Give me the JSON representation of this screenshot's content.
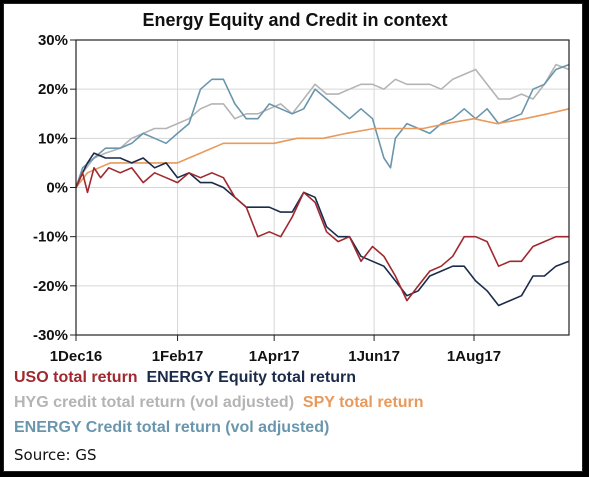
{
  "chart_data": {
    "type": "line",
    "title": "Energy Equity and Credit in context",
    "ylim": [
      -30,
      30
    ],
    "y_ticks": [
      "30%",
      "20%",
      "10%",
      "0%",
      "-10%",
      "-20%",
      "-30%"
    ],
    "x_range": [
      "2016-12-01",
      "2017-09-28"
    ],
    "x_ticks": [
      "1Dec16",
      "1Feb17",
      "1Apr17",
      "1Jun17",
      "1Aug17"
    ],
    "grid": true,
    "legend_position": "bottom",
    "series": [
      {
        "name": "USO total return",
        "color": "#a0282e",
        "points": [
          [
            "2016-12-01",
            0
          ],
          [
            "2016-12-05",
            3
          ],
          [
            "2016-12-08",
            -1
          ],
          [
            "2016-12-12",
            4
          ],
          [
            "2016-12-16",
            2
          ],
          [
            "2016-12-21",
            4
          ],
          [
            "2016-12-28",
            3
          ],
          [
            "2017-01-04",
            4
          ],
          [
            "2017-01-11",
            1
          ],
          [
            "2017-01-18",
            3
          ],
          [
            "2017-01-25",
            2
          ],
          [
            "2017-02-01",
            1
          ],
          [
            "2017-02-08",
            3
          ],
          [
            "2017-02-15",
            2
          ],
          [
            "2017-02-22",
            3
          ],
          [
            "2017-03-01",
            2
          ],
          [
            "2017-03-08",
            -2
          ],
          [
            "2017-03-15",
            -4
          ],
          [
            "2017-03-22",
            -10
          ],
          [
            "2017-03-29",
            -9
          ],
          [
            "2017-04-05",
            -10
          ],
          [
            "2017-04-12",
            -6
          ],
          [
            "2017-04-19",
            -1
          ],
          [
            "2017-04-26",
            -3
          ],
          [
            "2017-05-03",
            -9
          ],
          [
            "2017-05-10",
            -11
          ],
          [
            "2017-05-17",
            -10
          ],
          [
            "2017-05-24",
            -15
          ],
          [
            "2017-05-31",
            -12
          ],
          [
            "2017-06-07",
            -14
          ],
          [
            "2017-06-14",
            -18
          ],
          [
            "2017-06-21",
            -23
          ],
          [
            "2017-06-28",
            -20
          ],
          [
            "2017-07-05",
            -17
          ],
          [
            "2017-07-12",
            -16
          ],
          [
            "2017-07-19",
            -14
          ],
          [
            "2017-07-26",
            -10
          ],
          [
            "2017-08-02",
            -10
          ],
          [
            "2017-08-09",
            -11
          ],
          [
            "2017-08-16",
            -16
          ],
          [
            "2017-08-23",
            -15
          ],
          [
            "2017-08-30",
            -15
          ],
          [
            "2017-09-06",
            -12
          ],
          [
            "2017-09-13",
            -11
          ],
          [
            "2017-09-20",
            -10
          ],
          [
            "2017-09-28",
            -10
          ]
        ]
      },
      {
        "name": "ENERGY Equity total return",
        "color": "#1b2b4a",
        "points": [
          [
            "2016-12-01",
            0
          ],
          [
            "2016-12-05",
            3
          ],
          [
            "2016-12-08",
            5
          ],
          [
            "2016-12-12",
            7
          ],
          [
            "2016-12-19",
            6
          ],
          [
            "2016-12-28",
            6
          ],
          [
            "2017-01-04",
            5
          ],
          [
            "2017-01-11",
            6
          ],
          [
            "2017-01-18",
            4
          ],
          [
            "2017-01-25",
            5
          ],
          [
            "2017-02-01",
            2
          ],
          [
            "2017-02-08",
            3
          ],
          [
            "2017-02-15",
            1
          ],
          [
            "2017-02-22",
            1
          ],
          [
            "2017-03-01",
            0
          ],
          [
            "2017-03-08",
            -2
          ],
          [
            "2017-03-15",
            -4
          ],
          [
            "2017-03-22",
            -4
          ],
          [
            "2017-03-29",
            -4
          ],
          [
            "2017-04-05",
            -5
          ],
          [
            "2017-04-12",
            -5
          ],
          [
            "2017-04-19",
            -1
          ],
          [
            "2017-04-26",
            -2
          ],
          [
            "2017-05-03",
            -8
          ],
          [
            "2017-05-10",
            -10
          ],
          [
            "2017-05-17",
            -10
          ],
          [
            "2017-05-24",
            -14
          ],
          [
            "2017-05-31",
            -15
          ],
          [
            "2017-06-07",
            -16
          ],
          [
            "2017-06-14",
            -19
          ],
          [
            "2017-06-21",
            -22
          ],
          [
            "2017-06-28",
            -21
          ],
          [
            "2017-07-05",
            -18
          ],
          [
            "2017-07-12",
            -17
          ],
          [
            "2017-07-19",
            -16
          ],
          [
            "2017-07-26",
            -16
          ],
          [
            "2017-08-02",
            -19
          ],
          [
            "2017-08-09",
            -21
          ],
          [
            "2017-08-16",
            -24
          ],
          [
            "2017-08-23",
            -23
          ],
          [
            "2017-08-30",
            -22
          ],
          [
            "2017-09-06",
            -18
          ],
          [
            "2017-09-13",
            -18
          ],
          [
            "2017-09-20",
            -16
          ],
          [
            "2017-09-28",
            -15
          ]
        ]
      },
      {
        "name": "HYG credit total return (vol adjusted)",
        "color": "#b4b4b4",
        "points": [
          [
            "2016-12-01",
            0
          ],
          [
            "2016-12-05",
            3
          ],
          [
            "2016-12-12",
            6
          ],
          [
            "2016-12-19",
            7
          ],
          [
            "2016-12-28",
            8
          ],
          [
            "2017-01-04",
            10
          ],
          [
            "2017-01-11",
            11
          ],
          [
            "2017-01-18",
            12
          ],
          [
            "2017-01-25",
            12
          ],
          [
            "2017-02-01",
            13
          ],
          [
            "2017-02-08",
            14
          ],
          [
            "2017-02-15",
            16
          ],
          [
            "2017-02-22",
            17
          ],
          [
            "2017-03-01",
            17
          ],
          [
            "2017-03-08",
            14
          ],
          [
            "2017-03-15",
            15
          ],
          [
            "2017-03-22",
            15
          ],
          [
            "2017-03-29",
            16
          ],
          [
            "2017-04-05",
            17
          ],
          [
            "2017-04-12",
            15
          ],
          [
            "2017-04-19",
            18
          ],
          [
            "2017-04-26",
            21
          ],
          [
            "2017-05-03",
            19
          ],
          [
            "2017-05-10",
            19
          ],
          [
            "2017-05-17",
            20
          ],
          [
            "2017-05-24",
            21
          ],
          [
            "2017-05-31",
            21
          ],
          [
            "2017-06-07",
            20
          ],
          [
            "2017-06-14",
            22
          ],
          [
            "2017-06-21",
            21
          ],
          [
            "2017-06-28",
            21
          ],
          [
            "2017-07-05",
            21
          ],
          [
            "2017-07-12",
            20
          ],
          [
            "2017-07-19",
            22
          ],
          [
            "2017-07-26",
            23
          ],
          [
            "2017-08-02",
            24
          ],
          [
            "2017-08-09",
            21
          ],
          [
            "2017-08-16",
            18
          ],
          [
            "2017-08-23",
            18
          ],
          [
            "2017-08-30",
            19
          ],
          [
            "2017-09-06",
            18
          ],
          [
            "2017-09-13",
            21
          ],
          [
            "2017-09-20",
            25
          ],
          [
            "2017-09-28",
            24
          ]
        ]
      },
      {
        "name": "SPY total return",
        "color": "#e89a5c",
        "points": [
          [
            "2016-12-01",
            0
          ],
          [
            "2016-12-08",
            3
          ],
          [
            "2016-12-15",
            4
          ],
          [
            "2016-12-22",
            5
          ],
          [
            "2017-01-04",
            5
          ],
          [
            "2017-01-18",
            5
          ],
          [
            "2017-02-01",
            5
          ],
          [
            "2017-02-15",
            7
          ],
          [
            "2017-03-01",
            9
          ],
          [
            "2017-03-15",
            9
          ],
          [
            "2017-04-01",
            9
          ],
          [
            "2017-04-15",
            10
          ],
          [
            "2017-05-01",
            10
          ],
          [
            "2017-05-15",
            11
          ],
          [
            "2017-06-01",
            12
          ],
          [
            "2017-06-15",
            12
          ],
          [
            "2017-07-01",
            12
          ],
          [
            "2017-07-15",
            13
          ],
          [
            "2017-08-01",
            14
          ],
          [
            "2017-08-15",
            13
          ],
          [
            "2017-09-01",
            14
          ],
          [
            "2017-09-15",
            15
          ],
          [
            "2017-09-28",
            16
          ]
        ]
      },
      {
        "name": "ENERGY Credit total return (vol adjusted)",
        "color": "#6a96ad",
        "points": [
          [
            "2016-12-01",
            0
          ],
          [
            "2016-12-05",
            4
          ],
          [
            "2016-12-12",
            6
          ],
          [
            "2016-12-19",
            8
          ],
          [
            "2016-12-28",
            8
          ],
          [
            "2017-01-04",
            9
          ],
          [
            "2017-01-11",
            11
          ],
          [
            "2017-01-18",
            10
          ],
          [
            "2017-01-25",
            9
          ],
          [
            "2017-02-01",
            11
          ],
          [
            "2017-02-08",
            13
          ],
          [
            "2017-02-15",
            20
          ],
          [
            "2017-02-22",
            22
          ],
          [
            "2017-03-01",
            22
          ],
          [
            "2017-03-08",
            17
          ],
          [
            "2017-03-15",
            14
          ],
          [
            "2017-03-22",
            14
          ],
          [
            "2017-03-29",
            17
          ],
          [
            "2017-04-05",
            16
          ],
          [
            "2017-04-12",
            15
          ],
          [
            "2017-04-19",
            16
          ],
          [
            "2017-04-26",
            20
          ],
          [
            "2017-05-03",
            18
          ],
          [
            "2017-05-10",
            16
          ],
          [
            "2017-05-17",
            14
          ],
          [
            "2017-05-24",
            16
          ],
          [
            "2017-05-31",
            14
          ],
          [
            "2017-06-07",
            6
          ],
          [
            "2017-06-11",
            4
          ],
          [
            "2017-06-14",
            10
          ],
          [
            "2017-06-21",
            13
          ],
          [
            "2017-06-28",
            12
          ],
          [
            "2017-07-05",
            11
          ],
          [
            "2017-07-12",
            13
          ],
          [
            "2017-07-19",
            14
          ],
          [
            "2017-07-26",
            16
          ],
          [
            "2017-08-02",
            14
          ],
          [
            "2017-08-09",
            16
          ],
          [
            "2017-08-16",
            13
          ],
          [
            "2017-08-23",
            14
          ],
          [
            "2017-08-30",
            15
          ],
          [
            "2017-09-06",
            20
          ],
          [
            "2017-09-13",
            21
          ],
          [
            "2017-09-20",
            24
          ],
          [
            "2017-09-28",
            25
          ]
        ]
      }
    ]
  },
  "source": "Source: GS"
}
